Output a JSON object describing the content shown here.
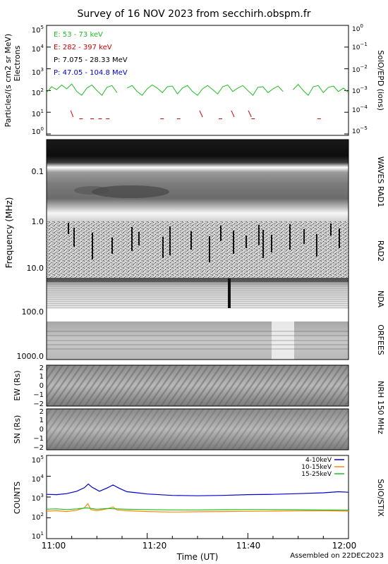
{
  "title": "Survey of 16 NOV 2023 from secchirh.obspm.fr",
  "footer": "Assembled on 22DEC2023",
  "time_axis": {
    "label": "Time (UT)",
    "ticks": [
      "11:00",
      "11:20",
      "11:40",
      "12:00"
    ]
  },
  "panels": {
    "epd": {
      "left_label_1": "Particles/(s cm2 sr MeV)",
      "left_label_2": "Electrons",
      "right_label": "SolO/EPD (ions)",
      "left_ticks": [
        "10^0",
        "10^1",
        "10^2",
        "10^3",
        "10^4",
        "10^5"
      ],
      "right_ticks": [
        "10^-5",
        "10^-4",
        "10^-3",
        "10^-2",
        "10^-1",
        "10^0"
      ],
      "legend": [
        {
          "text": "E: 53 - 73 keV",
          "color": "#22bb22"
        },
        {
          "text": "E: 282 - 397 keV",
          "color": "#cc0000"
        },
        {
          "text": "P: 7.075 - 28.33 MeV",
          "color": "#000000"
        },
        {
          "text": "P: 47.05 - 104.8 MeV",
          "color": "#0000cc"
        }
      ]
    },
    "radio": {
      "y_label": "Frequency (MHz)",
      "ticks": [
        "0.1",
        "1.0",
        "10.0",
        "100.0",
        "1000.0"
      ],
      "instruments": [
        "WAVES RAD1",
        "RAD2",
        "NDA",
        "ORFEES"
      ]
    },
    "nrh": {
      "ew_label": "EW (Rs)",
      "sn_label": "SN (Rs)",
      "ticks": [
        "2",
        "1",
        "0",
        "−1",
        "−2"
      ],
      "right_label": "NRH 150 MHz"
    },
    "stix": {
      "y_label": "COUNTS",
      "right_label": "SolO/STIX",
      "ticks": [
        "10^1",
        "10^2",
        "10^3",
        "10^4",
        "10^5"
      ],
      "legend": [
        {
          "text": "4-10keV",
          "color": "#0000cc"
        },
        {
          "text": "10-15keV",
          "color": "#ff8800"
        },
        {
          "text": "15-25keV",
          "color": "#22bb22"
        }
      ]
    }
  },
  "chart_data": [
    {
      "type": "line",
      "log_y": true,
      "ylim": [
        1,
        100000
      ],
      "xlim_minutes": [
        0,
        60
      ],
      "series": [
        {
          "name": "E: 53 - 73 keV",
          "color": "#22bb22",
          "segments": [
            [
              [
                0,
                80
              ],
              [
                1,
                150
              ],
              [
                2,
                110
              ],
              [
                3,
                180
              ],
              [
                4,
                120
              ],
              [
                5,
                200
              ],
              [
                6,
                90
              ],
              [
                7,
                60
              ],
              [
                8,
                130
              ],
              [
                9,
                180
              ],
              [
                10,
                100
              ],
              [
                11,
                60
              ],
              [
                12,
                140
              ],
              [
                13,
                170
              ],
              [
                14,
                80
              ]
            ],
            [
              [
                16,
                130
              ],
              [
                17,
                170
              ],
              [
                18,
                90
              ],
              [
                19,
                60
              ],
              [
                20,
                120
              ],
              [
                21,
                180
              ],
              [
                22,
                130
              ],
              [
                23,
                80
              ],
              [
                24,
                150
              ],
              [
                25,
                160
              ],
              [
                26,
                70
              ],
              [
                27,
                130
              ],
              [
                28,
                170
              ],
              [
                29,
                90
              ],
              [
                30,
                60
              ],
              [
                31,
                120
              ],
              [
                32,
                170
              ],
              [
                33,
                110
              ],
              [
                34,
                70
              ],
              [
                35,
                150
              ],
              [
                36,
                180
              ],
              [
                37,
                90
              ],
              [
                38,
                130
              ],
              [
                39,
                170
              ],
              [
                40,
                100
              ],
              [
                41,
                60
              ],
              [
                42,
                140
              ],
              [
                43,
                150
              ],
              [
                44,
                80
              ],
              [
                45,
                120
              ],
              [
                46,
                160
              ],
              [
                47,
                90
              ]
            ],
            [
              [
                49,
                110
              ],
              [
                50,
                190
              ],
              [
                51,
                100
              ],
              [
                52,
                60
              ],
              [
                53,
                150
              ],
              [
                54,
                170
              ],
              [
                55,
                80
              ],
              [
                56,
                140
              ],
              [
                57,
                160
              ],
              [
                58,
                90
              ],
              [
                59,
                130
              ],
              [
                60,
                80
              ]
            ]
          ]
        },
        {
          "name": "E: 282 - 397 keV",
          "color": "#cc0000",
          "segments": [
            [
              [
                4.8,
                12
              ],
              [
                5.3,
                6
              ]
            ],
            [
              [
                6.5,
                5
              ],
              [
                7.2,
                5
              ]
            ],
            [
              [
                8.7,
                5
              ],
              [
                9.4,
                5
              ]
            ],
            [
              [
                10.3,
                5
              ],
              [
                11,
                5
              ]
            ],
            [
              [
                11.8,
                5
              ],
              [
                12.5,
                5
              ]
            ],
            [
              [
                22.6,
                5
              ],
              [
                23.3,
                5
              ]
            ],
            [
              [
                25.9,
                5
              ],
              [
                26.6,
                5
              ]
            ],
            [
              [
                30.4,
                12
              ],
              [
                31,
                6
              ]
            ],
            [
              [
                34.2,
                5
              ],
              [
                34.9,
                5
              ]
            ],
            [
              [
                36.7,
                12
              ],
              [
                37.3,
                6
              ]
            ],
            [
              [
                40.1,
                12
              ],
              [
                40.7,
                6
              ]
            ],
            [
              [
                40.7,
                5
              ],
              [
                41.4,
                5
              ]
            ],
            [
              [
                53.8,
                5
              ],
              [
                54.5,
                5
              ]
            ]
          ]
        }
      ]
    },
    {
      "type": "line",
      "log_y": true,
      "ylim": [
        10,
        100000
      ],
      "xlim_minutes": [
        0,
        60
      ],
      "series": [
        {
          "name": "4-10keV",
          "color": "#0000cc",
          "points": [
            [
              0,
              1350
            ],
            [
              2,
              1300
            ],
            [
              4,
              1450
            ],
            [
              6,
              1900
            ],
            [
              7.5,
              2800
            ],
            [
              8.3,
              4200
            ],
            [
              9,
              3000
            ],
            [
              10.5,
              1900
            ],
            [
              12,
              2700
            ],
            [
              13.2,
              3800
            ],
            [
              14.5,
              2600
            ],
            [
              16,
              1800
            ],
            [
              18,
              1600
            ],
            [
              20,
              1400
            ],
            [
              25,
              1200
            ],
            [
              30,
              1150
            ],
            [
              35,
              1200
            ],
            [
              40,
              1300
            ],
            [
              45,
              1350
            ],
            [
              50,
              1450
            ],
            [
              55,
              1600
            ],
            [
              58,
              1800
            ],
            [
              60,
              1700
            ]
          ]
        },
        {
          "name": "10-15keV",
          "color": "#ff8800",
          "points": [
            [
              0,
              210
            ],
            [
              2,
              220
            ],
            [
              4,
              200
            ],
            [
              6,
              230
            ],
            [
              7.5,
              300
            ],
            [
              8.2,
              480
            ],
            [
              8.8,
              250
            ],
            [
              10,
              220
            ],
            [
              12,
              270
            ],
            [
              13.2,
              330
            ],
            [
              14,
              240
            ],
            [
              16,
              220
            ],
            [
              20,
              200
            ],
            [
              25,
              190
            ],
            [
              30,
              195
            ],
            [
              35,
              200
            ],
            [
              40,
              205
            ],
            [
              45,
              210
            ],
            [
              50,
              215
            ],
            [
              55,
              220
            ],
            [
              60,
              210
            ]
          ]
        },
        {
          "name": "15-25keV",
          "color": "#22bb22",
          "points": [
            [
              0,
              260
            ],
            [
              2,
              270
            ],
            [
              4,
              250
            ],
            [
              6,
              270
            ],
            [
              8,
              300
            ],
            [
              10,
              260
            ],
            [
              12,
              280
            ],
            [
              14,
              270
            ],
            [
              16,
              260
            ],
            [
              20,
              250
            ],
            [
              25,
              240
            ],
            [
              30,
              240
            ],
            [
              35,
              245
            ],
            [
              40,
              250
            ],
            [
              45,
              250
            ],
            [
              50,
              245
            ],
            [
              55,
              240
            ],
            [
              60,
              235
            ]
          ]
        }
      ]
    }
  ]
}
